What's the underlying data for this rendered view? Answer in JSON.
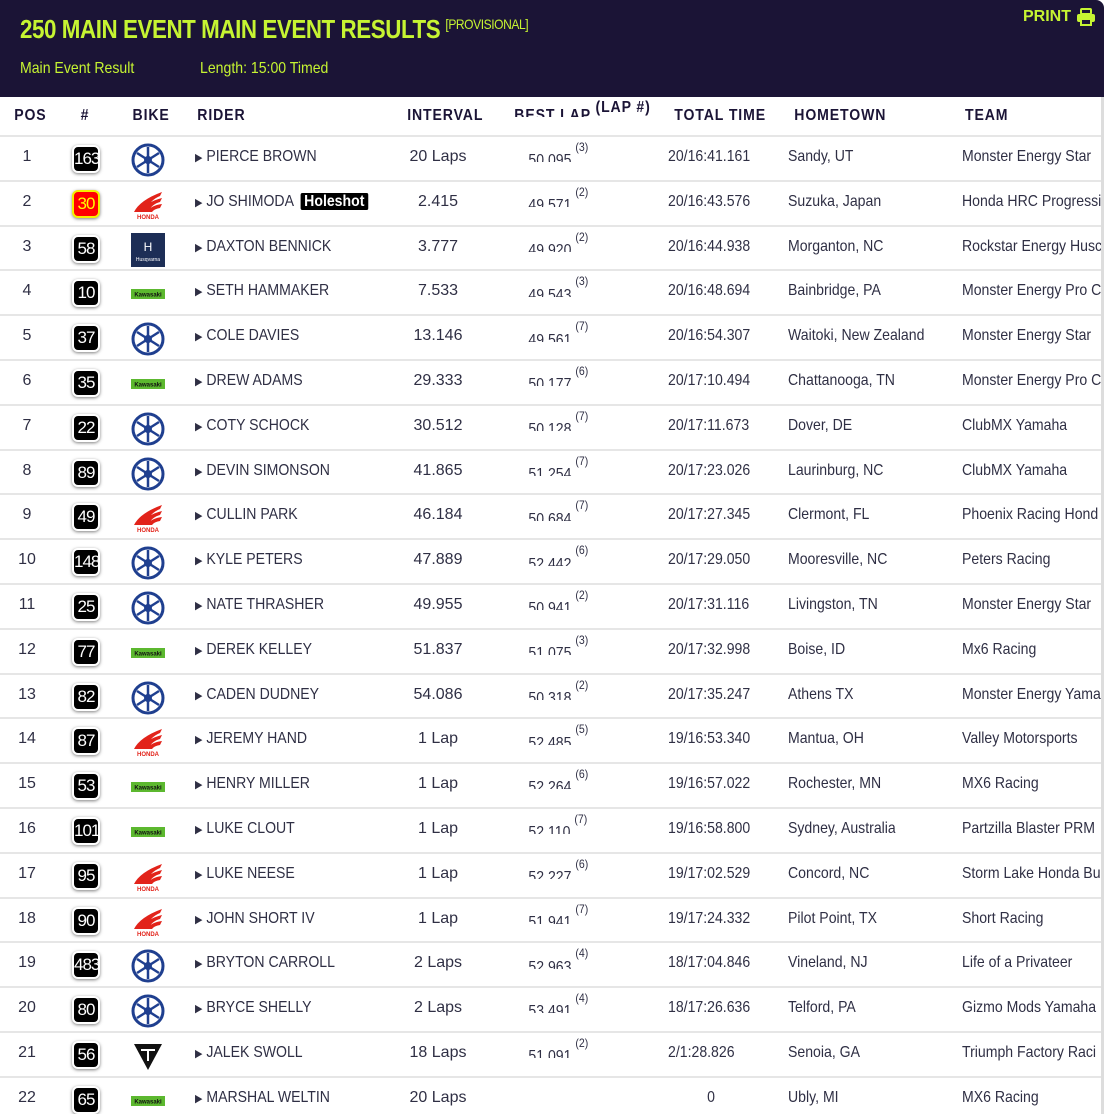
{
  "header": {
    "title": "250 MAIN EVENT MAIN EVENT RESULTS",
    "status": "[PROVISIONAL]",
    "result_type": "Main Event Result",
    "length": "Length: 15:00 Timed",
    "print_label": "PRINT",
    "print_icon": "printer-icon"
  },
  "colors": {
    "header_bg": "#1b1436",
    "accent": "#c6f432",
    "holeshot_number_bg": "#ff0000"
  },
  "columns": {
    "pos": "POS",
    "num": "#",
    "bike": "BIKE",
    "rider": "RIDER",
    "interval": "INTERVAL",
    "best_lap": "BEST LAP",
    "lap_num": "(LAP #)",
    "total_time": "TOTAL TIME",
    "hometown": "HOMETOWN",
    "team": "TEAM"
  },
  "rows": [
    {
      "pos": "1",
      "num": "163",
      "bike": "yamaha",
      "rider": "PIERCE BROWN",
      "interval": "20 Laps",
      "best": "50.095",
      "lap": "(3)",
      "total": "20/16:41.161",
      "hometown": "Sandy, UT",
      "team": "Monster Energy Star"
    },
    {
      "pos": "2",
      "num": "30",
      "bike": "honda",
      "rider": "JO SHIMODA",
      "badge": "Holeshot",
      "interval": "2.415",
      "best": "49.571",
      "lap": "(2)",
      "total": "20/16:43.576",
      "hometown": "Suzuka, Japan",
      "team": "Honda HRC Progressi"
    },
    {
      "pos": "3",
      "num": "58",
      "bike": "husqvarna",
      "rider": "DAXTON BENNICK",
      "interval": "3.777",
      "best": "49.920",
      "lap": "(2)",
      "total": "20/16:44.938",
      "hometown": "Morganton, NC",
      "team": "Rockstar Energy Husc"
    },
    {
      "pos": "4",
      "num": "10",
      "bike": "kawasaki",
      "rider": "SETH HAMMAKER",
      "interval": "7.533",
      "best": "49.543",
      "lap": "(3)",
      "total": "20/16:48.694",
      "hometown": "Bainbridge, PA",
      "team": "Monster Energy Pro C"
    },
    {
      "pos": "5",
      "num": "37",
      "bike": "yamaha",
      "rider": "COLE DAVIES",
      "interval": "13.146",
      "best": "49.561",
      "lap": "(7)",
      "total": "20/16:54.307",
      "hometown": "Waitoki, New Zealand",
      "team": "Monster Energy Star"
    },
    {
      "pos": "6",
      "num": "35",
      "bike": "kawasaki",
      "rider": "DREW ADAMS",
      "interval": "29.333",
      "best": "50.177",
      "lap": "(6)",
      "total": "20/17:10.494",
      "hometown": "Chattanooga, TN",
      "team": "Monster Energy Pro C"
    },
    {
      "pos": "7",
      "num": "22",
      "bike": "yamaha",
      "rider": "COTY SCHOCK",
      "interval": "30.512",
      "best": "50.128",
      "lap": "(7)",
      "total": "20/17:11.673",
      "hometown": "Dover, DE",
      "team": "ClubMX Yamaha"
    },
    {
      "pos": "8",
      "num": "89",
      "bike": "yamaha",
      "rider": "DEVIN SIMONSON",
      "interval": "41.865",
      "best": "51.254",
      "lap": "(7)",
      "total": "20/17:23.026",
      "hometown": "Laurinburg, NC",
      "team": "ClubMX Yamaha"
    },
    {
      "pos": "9",
      "num": "49",
      "bike": "honda",
      "rider": "CULLIN PARK",
      "interval": "46.184",
      "best": "50.684",
      "lap": "(7)",
      "total": "20/17:27.345",
      "hometown": "Clermont, FL",
      "team": "Phoenix Racing Hond"
    },
    {
      "pos": "10",
      "num": "148",
      "bike": "yamaha",
      "rider": "KYLE PETERS",
      "interval": "47.889",
      "best": "52.442",
      "lap": "(6)",
      "total": "20/17:29.050",
      "hometown": "Mooresville, NC",
      "team": "Peters Racing"
    },
    {
      "pos": "11",
      "num": "25",
      "bike": "yamaha",
      "rider": "NATE THRASHER",
      "interval": "49.955",
      "best": "50.941",
      "lap": "(2)",
      "total": "20/17:31.116",
      "hometown": "Livingston, TN",
      "team": "Monster Energy Star"
    },
    {
      "pos": "12",
      "num": "77",
      "bike": "kawasaki",
      "rider": "DEREK KELLEY",
      "interval": "51.837",
      "best": "51.075",
      "lap": "(3)",
      "total": "20/17:32.998",
      "hometown": "Boise, ID",
      "team": "Mx6 Racing"
    },
    {
      "pos": "13",
      "num": "82",
      "bike": "yamaha",
      "rider": "CADEN DUDNEY",
      "interval": "54.086",
      "best": "50.318",
      "lap": "(2)",
      "total": "20/17:35.247",
      "hometown": "Athens TX",
      "team": "Monster Energy Yama"
    },
    {
      "pos": "14",
      "num": "87",
      "bike": "honda",
      "rider": "JEREMY HAND",
      "interval": "1 Lap",
      "best": "52.485",
      "lap": "(5)",
      "total": "19/16:53.340",
      "hometown": "Mantua, OH",
      "team": "Valley Motorsports"
    },
    {
      "pos": "15",
      "num": "53",
      "bike": "kawasaki",
      "rider": "HENRY MILLER",
      "interval": "1 Lap",
      "best": "52.264",
      "lap": "(6)",
      "total": "19/16:57.022",
      "hometown": "Rochester, MN",
      "team": "MX6 Racing"
    },
    {
      "pos": "16",
      "num": "101",
      "bike": "kawasaki",
      "rider": "LUKE CLOUT",
      "interval": "1 Lap",
      "best": "52.110",
      "lap": "(7)",
      "total": "19/16:58.800",
      "hometown": "Sydney, Australia",
      "team": "Partzilla Blaster PRM"
    },
    {
      "pos": "17",
      "num": "95",
      "bike": "honda",
      "rider": "LUKE NEESE",
      "interval": "1 Lap",
      "best": "52.227",
      "lap": "(6)",
      "total": "19/17:02.529",
      "hometown": "Concord, NC",
      "team": "Storm Lake Honda Bu"
    },
    {
      "pos": "18",
      "num": "90",
      "bike": "honda",
      "rider": "JOHN SHORT IV",
      "interval": "1 Lap",
      "best": "51.941",
      "lap": "(7)",
      "total": "19/17:24.332",
      "hometown": "Pilot Point, TX",
      "team": "Short Racing"
    },
    {
      "pos": "19",
      "num": "483",
      "bike": "yamaha",
      "rider": "BRYTON CARROLL",
      "interval": "2 Laps",
      "best": "52.963",
      "lap": "(4)",
      "total": "18/17:04.846",
      "hometown": "Vineland, NJ",
      "team": "Life of a Privateer"
    },
    {
      "pos": "20",
      "num": "80",
      "bike": "yamaha",
      "rider": "BRYCE SHELLY",
      "interval": "2 Laps",
      "best": "53.491",
      "lap": "(4)",
      "total": "18/17:26.636",
      "hometown": "Telford, PA",
      "team": "Gizmo Mods Yamaha"
    },
    {
      "pos": "21",
      "num": "56",
      "bike": "triumph",
      "rider": "JALEK SWOLL",
      "interval": "18 Laps",
      "best": "51.091",
      "lap": "(2)",
      "total": "2/1:28.826",
      "hometown": "Senoia, GA",
      "team": "Triumph Factory Raci"
    },
    {
      "pos": "22",
      "num": "65",
      "bike": "kawasaki",
      "rider": "MARSHAL WELTIN",
      "interval": "20 Laps",
      "best": "",
      "lap": "",
      "total": "0",
      "hometown": "Ubly, MI",
      "team": "MX6 Racing"
    }
  ]
}
